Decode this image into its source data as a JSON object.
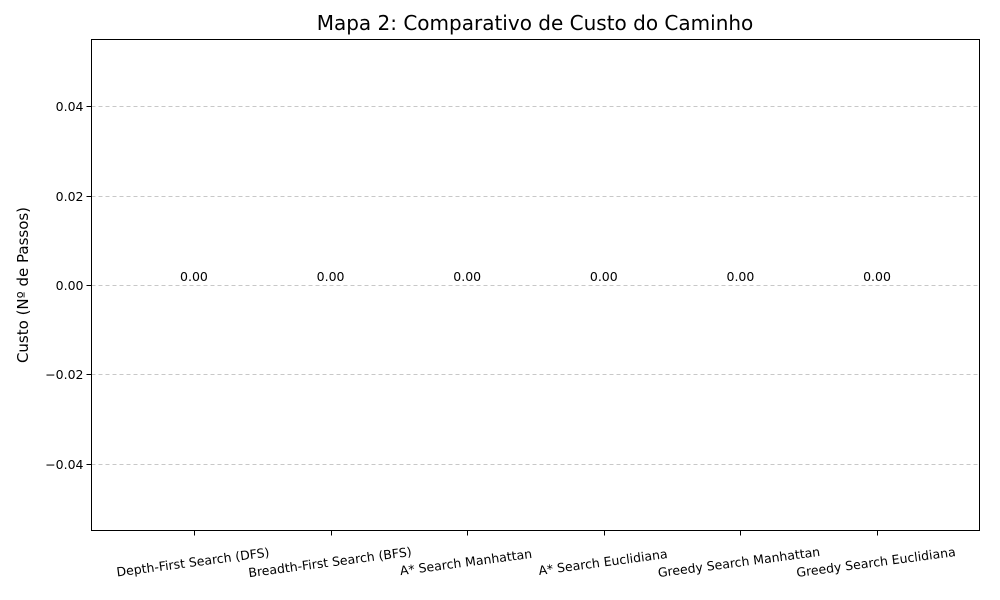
{
  "chart_data": {
    "type": "bar",
    "title": "Mapa 2: Comparativo de Custo do Caminho",
    "xlabel": "",
    "ylabel": "Custo (Nº de Passos)",
    "categories": [
      "Depth-First Search (DFS)",
      "Breadth-First Search (BFS)",
      "A* Search Manhattan",
      "A* Search Euclidiana",
      "Greedy Search Manhattan",
      "Greedy Search Euclidiana"
    ],
    "values": [
      0,
      0,
      0,
      0,
      0,
      0
    ],
    "data_labels": [
      "0.00",
      "0.00",
      "0.00",
      "0.00",
      "0.00",
      "0.00"
    ],
    "ylim": [
      -0.055,
      0.055
    ],
    "yticks": [
      -0.04,
      -0.02,
      0.0,
      0.02,
      0.04
    ],
    "ytick_labels": [
      "−0.04",
      "−0.02",
      "0.00",
      "0.02",
      "0.04"
    ],
    "grid": "y",
    "bar_color": "#4c72b0"
  }
}
